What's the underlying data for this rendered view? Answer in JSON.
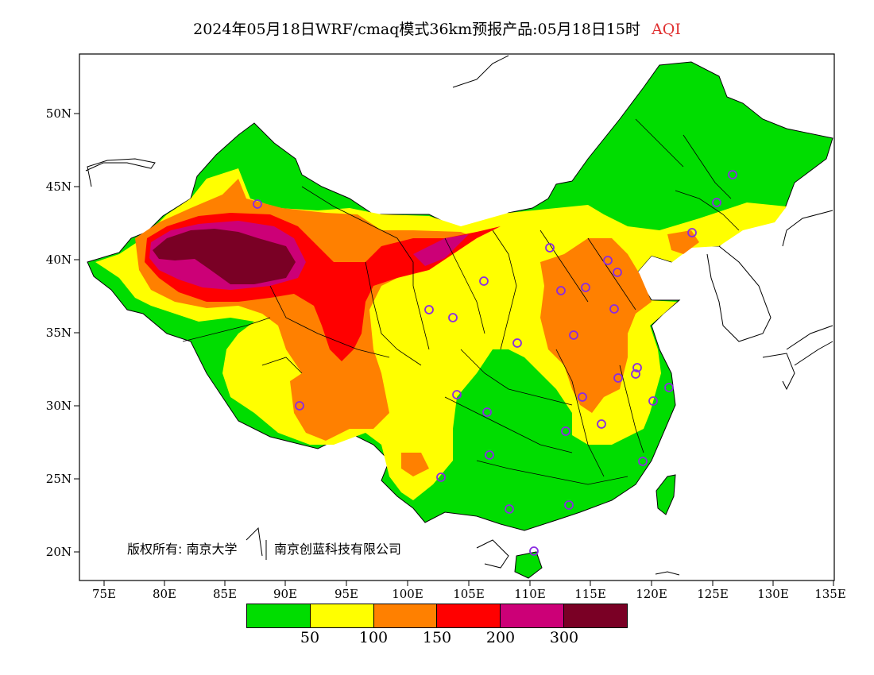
{
  "title": "2024年05月18日WRF/cmaq模式36km预报产品:05月18日15时",
  "title_variable": "AQI",
  "copyright": "版权所有: 南京大学",
  "copyright_company": "南京创蓝科技有限公司",
  "lat_labels": [
    "50N",
    "45N",
    "40N",
    "35N",
    "30N",
    "25N",
    "20N"
  ],
  "lon_labels": [
    "75E",
    "80E",
    "85E",
    "90E",
    "95E",
    "100E",
    "105E",
    "110E",
    "115E",
    "120E",
    "125E",
    "130E",
    "135E"
  ],
  "legend": {
    "colors": [
      "#00dd00",
      "#ffff00",
      "#ff8000",
      "#ff0000",
      "#cc0077",
      "#7a0025"
    ],
    "ticks": [
      "50",
      "100",
      "150",
      "200",
      "300"
    ]
  },
  "station_color": "#8a2be2"
}
